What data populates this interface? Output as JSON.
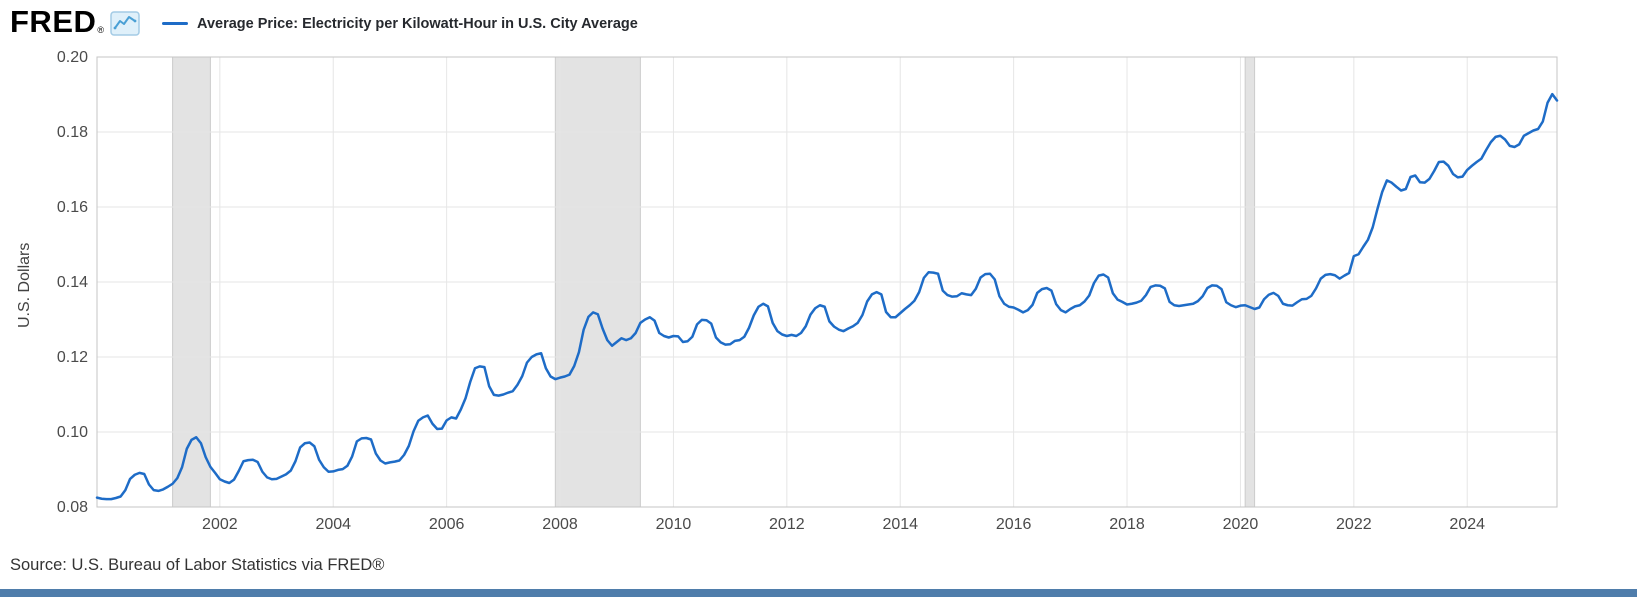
{
  "header": {
    "brand": "FRED",
    "registered": "®",
    "legend_label": "Average Price: Electricity per Kilowatt-Hour in U.S. City Average"
  },
  "footer": {
    "source": "Source: U.S. Bureau of Labor Statistics via FRED®"
  },
  "colors": {
    "line": "#1e6cc7",
    "recession_band": "#e3e3e3",
    "recession_band_border": "#cccccc",
    "grid": "#e6e6e6",
    "frame": "#c5c5c5",
    "tick_text": "#4a4a4a",
    "bottom_bar": "#4f7dab"
  },
  "chart_data": {
    "type": "line",
    "title": "Average Price: Electricity per Kilowatt-Hour in U.S. City Average",
    "xlabel": "",
    "ylabel": "U.S. Dollars",
    "ylim": [
      0.08,
      0.2
    ],
    "y_ticks": [
      0.08,
      0.1,
      0.12,
      0.14,
      0.16,
      0.18,
      0.2
    ],
    "x_ticks": [
      2002,
      2004,
      2006,
      2008,
      2010,
      2012,
      2014,
      2016,
      2018,
      2020,
      2022,
      2024
    ],
    "grid": true,
    "legend_position": "top-left",
    "recession_bands": [
      [
        "2001-03",
        "2001-11"
      ],
      [
        "2007-12",
        "2009-06"
      ],
      [
        "2020-02",
        "2020-04"
      ]
    ],
    "series": [
      {
        "name": "Average Price: Electricity per Kilowatt-Hour in U.S. City Average",
        "units": "U.S. Dollars",
        "frequency": "monthly",
        "start": "1999-11",
        "values": [
          0.0825,
          0.0822,
          0.0821,
          0.0821,
          0.0824,
          0.0828,
          0.0845,
          0.0875,
          0.0886,
          0.0891,
          0.0888,
          0.086,
          0.0845,
          0.0843,
          0.0847,
          0.0854,
          0.0862,
          0.0877,
          0.0906,
          0.0955,
          0.0979,
          0.0986,
          0.097,
          0.0933,
          0.0907,
          0.0891,
          0.0874,
          0.0868,
          0.0864,
          0.0873,
          0.0896,
          0.0922,
          0.0925,
          0.0926,
          0.092,
          0.0894,
          0.0879,
          0.0874,
          0.0875,
          0.0881,
          0.0887,
          0.0897,
          0.0922,
          0.0959,
          0.097,
          0.0972,
          0.0962,
          0.0926,
          0.0906,
          0.0894,
          0.0895,
          0.0899,
          0.0901,
          0.091,
          0.0935,
          0.0975,
          0.0983,
          0.0984,
          0.098,
          0.0943,
          0.0924,
          0.0916,
          0.0919,
          0.0921,
          0.0924,
          0.0939,
          0.0963,
          0.1002,
          0.103,
          0.1039,
          0.1044,
          0.1022,
          0.1008,
          0.1009,
          0.1031,
          0.1039,
          0.1036,
          0.106,
          0.109,
          0.1134,
          0.117,
          0.1175,
          0.1173,
          0.1122,
          0.1099,
          0.1097,
          0.11,
          0.1105,
          0.1109,
          0.1126,
          0.1149,
          0.1185,
          0.12,
          0.1207,
          0.121,
          0.117,
          0.1148,
          0.1141,
          0.1145,
          0.1148,
          0.1153,
          0.1176,
          0.1213,
          0.1273,
          0.1307,
          0.1319,
          0.1314,
          0.1276,
          0.1245,
          0.123,
          0.124,
          0.125,
          0.1245,
          0.125,
          0.1264,
          0.1291,
          0.13,
          0.1306,
          0.1297,
          0.1264,
          0.1256,
          0.1252,
          0.1256,
          0.1255,
          0.124,
          0.1242,
          0.1254,
          0.1287,
          0.1299,
          0.1298,
          0.1289,
          0.1252,
          0.1239,
          0.1233,
          0.1234,
          0.1243,
          0.1245,
          0.1254,
          0.1278,
          0.1311,
          0.1334,
          0.1342,
          0.1335,
          0.1291,
          0.1269,
          0.126,
          0.1256,
          0.1259,
          0.1256,
          0.1264,
          0.1282,
          0.1313,
          0.133,
          0.1338,
          0.1334,
          0.1295,
          0.1281,
          0.1273,
          0.1269,
          0.1276,
          0.1282,
          0.1291,
          0.1312,
          0.1348,
          0.1367,
          0.1373,
          0.1367,
          0.132,
          0.1306,
          0.1306,
          0.1317,
          0.1328,
          0.1338,
          0.135,
          0.1373,
          0.1411,
          0.1426,
          0.1425,
          0.1422,
          0.1377,
          0.1365,
          0.1361,
          0.1362,
          0.137,
          0.1367,
          0.1365,
          0.1382,
          0.1412,
          0.1421,
          0.1422,
          0.1407,
          0.1362,
          0.1342,
          0.1334,
          0.1332,
          0.1326,
          0.1319,
          0.1325,
          0.1339,
          0.1371,
          0.1381,
          0.1384,
          0.1377,
          0.1341,
          0.1325,
          0.1319,
          0.1328,
          0.1335,
          0.1338,
          0.1348,
          0.1364,
          0.1397,
          0.1417,
          0.142,
          0.1412,
          0.137,
          0.1353,
          0.1347,
          0.134,
          0.1342,
          0.1345,
          0.135,
          0.1365,
          0.1387,
          0.1391,
          0.139,
          0.1383,
          0.1347,
          0.1338,
          0.1336,
          0.1338,
          0.134,
          0.1342,
          0.1349,
          0.1362,
          0.1384,
          0.1391,
          0.139,
          0.1381,
          0.1346,
          0.1338,
          0.1333,
          0.1337,
          0.1338,
          0.1333,
          0.1328,
          0.1332,
          0.1354,
          0.1366,
          0.1371,
          0.1363,
          0.1342,
          0.1338,
          0.1337,
          0.1346,
          0.1354,
          0.1355,
          0.1363,
          0.1383,
          0.1409,
          0.1419,
          0.1421,
          0.1418,
          0.1409,
          0.1417,
          0.1424,
          0.1469,
          0.1474,
          0.1494,
          0.1513,
          0.1546,
          0.1595,
          0.164,
          0.1671,
          0.1665,
          0.1654,
          0.1644,
          0.1648,
          0.168,
          0.1684,
          0.1666,
          0.1665,
          0.1675,
          0.1696,
          0.172,
          0.1721,
          0.171,
          0.1688,
          0.1679,
          0.1681,
          0.1699,
          0.171,
          0.172,
          0.1729,
          0.1752,
          0.1773,
          0.1787,
          0.179,
          0.178,
          0.1763,
          0.176,
          0.1767,
          0.179,
          0.1797,
          0.1804,
          0.1808,
          0.1828,
          0.1878,
          0.1901,
          0.1884
        ]
      }
    ]
  }
}
